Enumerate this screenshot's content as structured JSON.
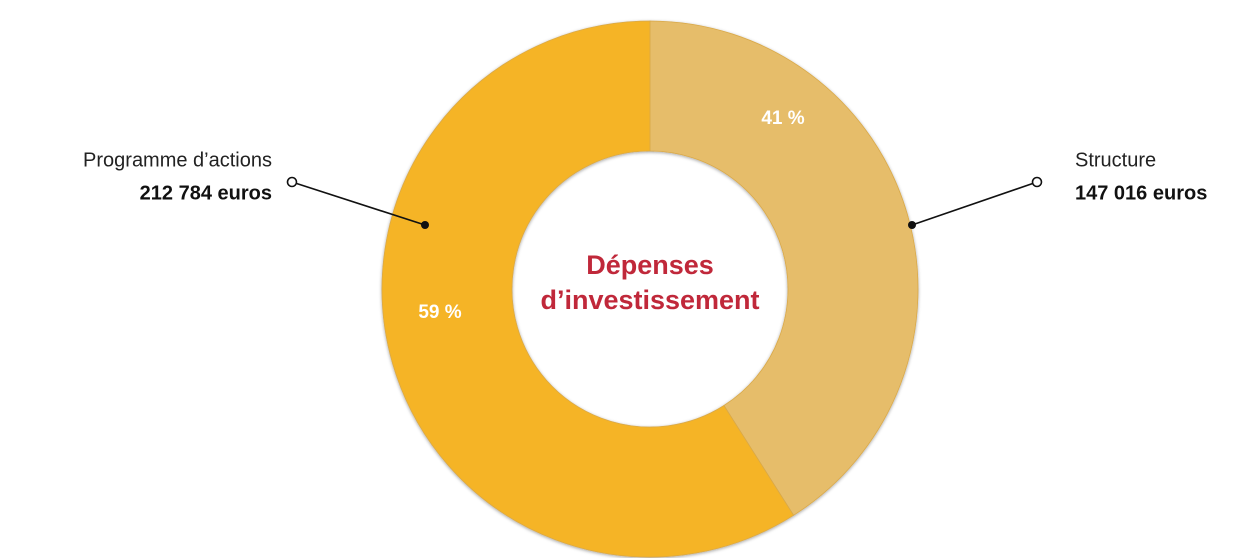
{
  "chart_data": {
    "type": "pie",
    "center_label": [
      "Dépenses",
      "d’investissement"
    ],
    "categories": [
      "Structure",
      "Programme d’actions"
    ],
    "values": [
      41,
      59
    ],
    "value_labels": [
      "41 %",
      "59 %"
    ],
    "amount_labels": [
      "147 016 euros",
      "212 784 euros"
    ],
    "colors": [
      "#e6bd6a",
      "#f5b427"
    ]
  }
}
